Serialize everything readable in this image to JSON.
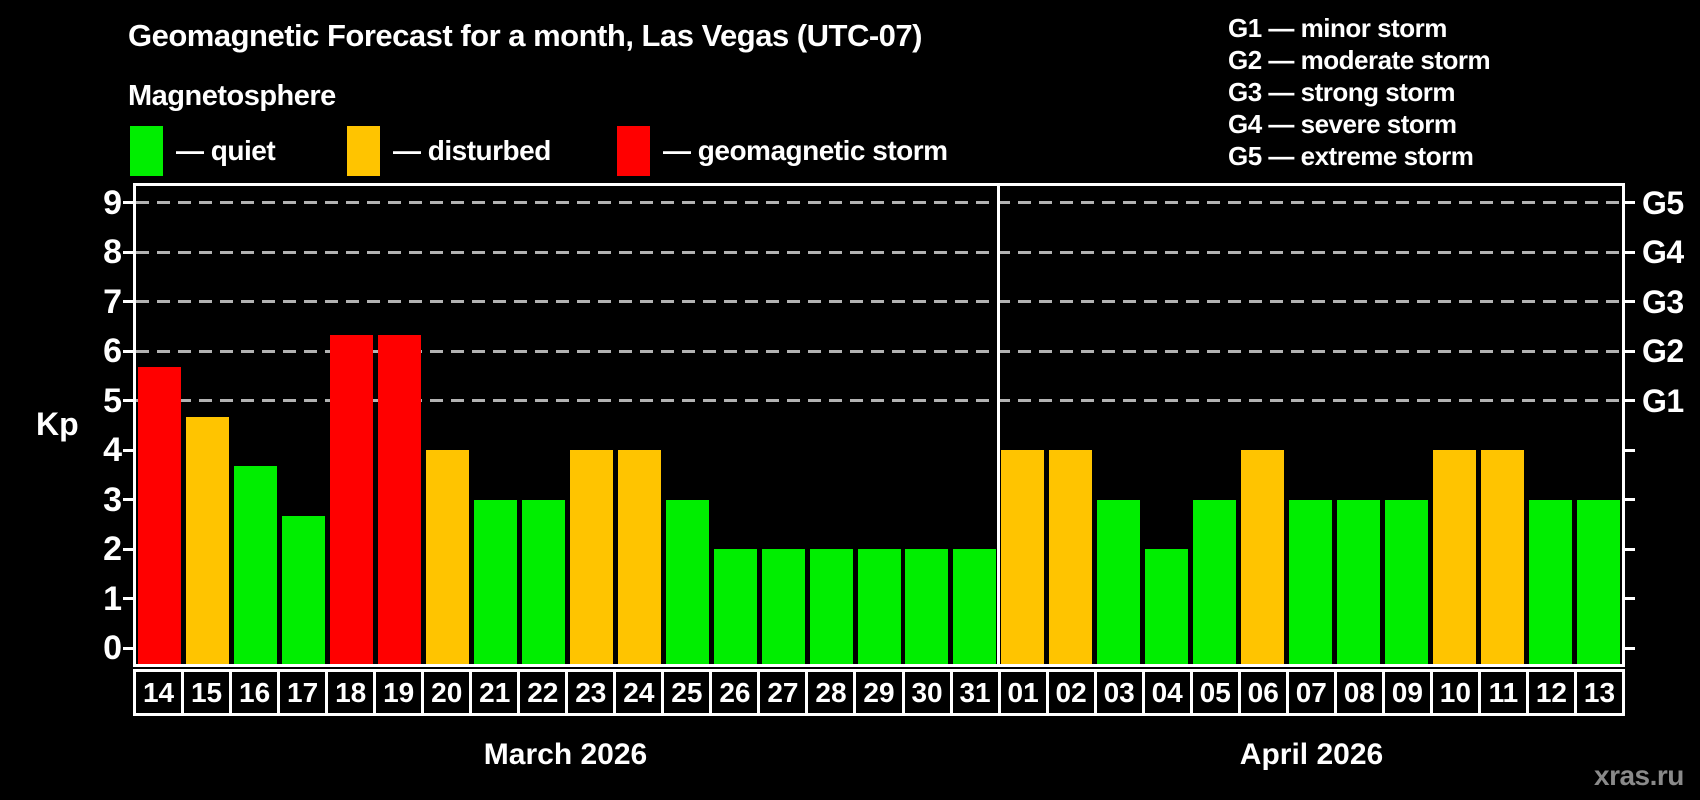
{
  "title": "Geomagnetic Forecast for a month, Las Vegas (UTC-07)",
  "subtitle": "Magnetosphere",
  "legend": {
    "items": [
      {
        "key": "quiet",
        "label": "— quiet",
        "color": "#00ee00"
      },
      {
        "key": "disturbed",
        "label": "— disturbed",
        "color": "#ffc400"
      },
      {
        "key": "storm",
        "label": "— geomagnetic storm",
        "color": "#ff0000"
      }
    ]
  },
  "g_scale_legend": [
    "G1 — minor storm",
    "G2 — moderate storm",
    "G3 — strong storm",
    "G4 — severe storm",
    "G5 — extreme storm"
  ],
  "watermark": "xras.ru",
  "chart_data": {
    "type": "bar",
    "title": "Geomagnetic Forecast for a month, Las Vegas (UTC-07)",
    "ylabel": "Kp",
    "ylim": [
      0,
      9
    ],
    "yticks": [
      0,
      1,
      2,
      3,
      4,
      5,
      6,
      7,
      8,
      9
    ],
    "gridlines_at_kp": [
      5,
      6,
      7,
      8,
      9
    ],
    "grid": "dashed, G-levels only",
    "legend_position": "top",
    "right_axis": [
      {
        "label": "G1",
        "kp": 5
      },
      {
        "label": "G2",
        "kp": 6
      },
      {
        "label": "G3",
        "kp": 7
      },
      {
        "label": "G4",
        "kp": 8
      },
      {
        "label": "G5",
        "kp": 9
      }
    ],
    "status_colors": {
      "quiet": "#00ee00",
      "disturbed": "#ffc400",
      "storm": "#ff0000"
    },
    "months": [
      {
        "label": "March 2026",
        "days": [
          {
            "day": "14",
            "kp": 5.67,
            "status": "storm"
          },
          {
            "day": "15",
            "kp": 4.67,
            "status": "disturbed"
          },
          {
            "day": "16",
            "kp": 3.67,
            "status": "quiet"
          },
          {
            "day": "17",
            "kp": 2.67,
            "status": "quiet"
          },
          {
            "day": "18",
            "kp": 6.33,
            "status": "storm"
          },
          {
            "day": "19",
            "kp": 6.33,
            "status": "storm"
          },
          {
            "day": "20",
            "kp": 4,
            "status": "disturbed"
          },
          {
            "day": "21",
            "kp": 3,
            "status": "quiet"
          },
          {
            "day": "22",
            "kp": 3,
            "status": "quiet"
          },
          {
            "day": "23",
            "kp": 4,
            "status": "disturbed"
          },
          {
            "day": "24",
            "kp": 4,
            "status": "disturbed"
          },
          {
            "day": "25",
            "kp": 3,
            "status": "quiet"
          },
          {
            "day": "26",
            "kp": 2,
            "status": "quiet"
          },
          {
            "day": "27",
            "kp": 2,
            "status": "quiet"
          },
          {
            "day": "28",
            "kp": 2,
            "status": "quiet"
          },
          {
            "day": "29",
            "kp": 2,
            "status": "quiet"
          },
          {
            "day": "30",
            "kp": 2,
            "status": "quiet"
          },
          {
            "day": "31",
            "kp": 2,
            "status": "quiet"
          }
        ]
      },
      {
        "label": "April 2026",
        "days": [
          {
            "day": "01",
            "kp": 4,
            "status": "disturbed"
          },
          {
            "day": "02",
            "kp": 4,
            "status": "disturbed"
          },
          {
            "day": "03",
            "kp": 3,
            "status": "quiet"
          },
          {
            "day": "04",
            "kp": 2,
            "status": "quiet"
          },
          {
            "day": "05",
            "kp": 3,
            "status": "quiet"
          },
          {
            "day": "06",
            "kp": 4,
            "status": "disturbed"
          },
          {
            "day": "07",
            "kp": 3,
            "status": "quiet"
          },
          {
            "day": "08",
            "kp": 3,
            "status": "quiet"
          },
          {
            "day": "09",
            "kp": 3,
            "status": "quiet"
          },
          {
            "day": "10",
            "kp": 4,
            "status": "disturbed"
          },
          {
            "day": "11",
            "kp": 4,
            "status": "disturbed"
          },
          {
            "day": "12",
            "kp": 3,
            "status": "quiet"
          },
          {
            "day": "13",
            "kp": 3,
            "status": "quiet"
          }
        ]
      }
    ]
  }
}
